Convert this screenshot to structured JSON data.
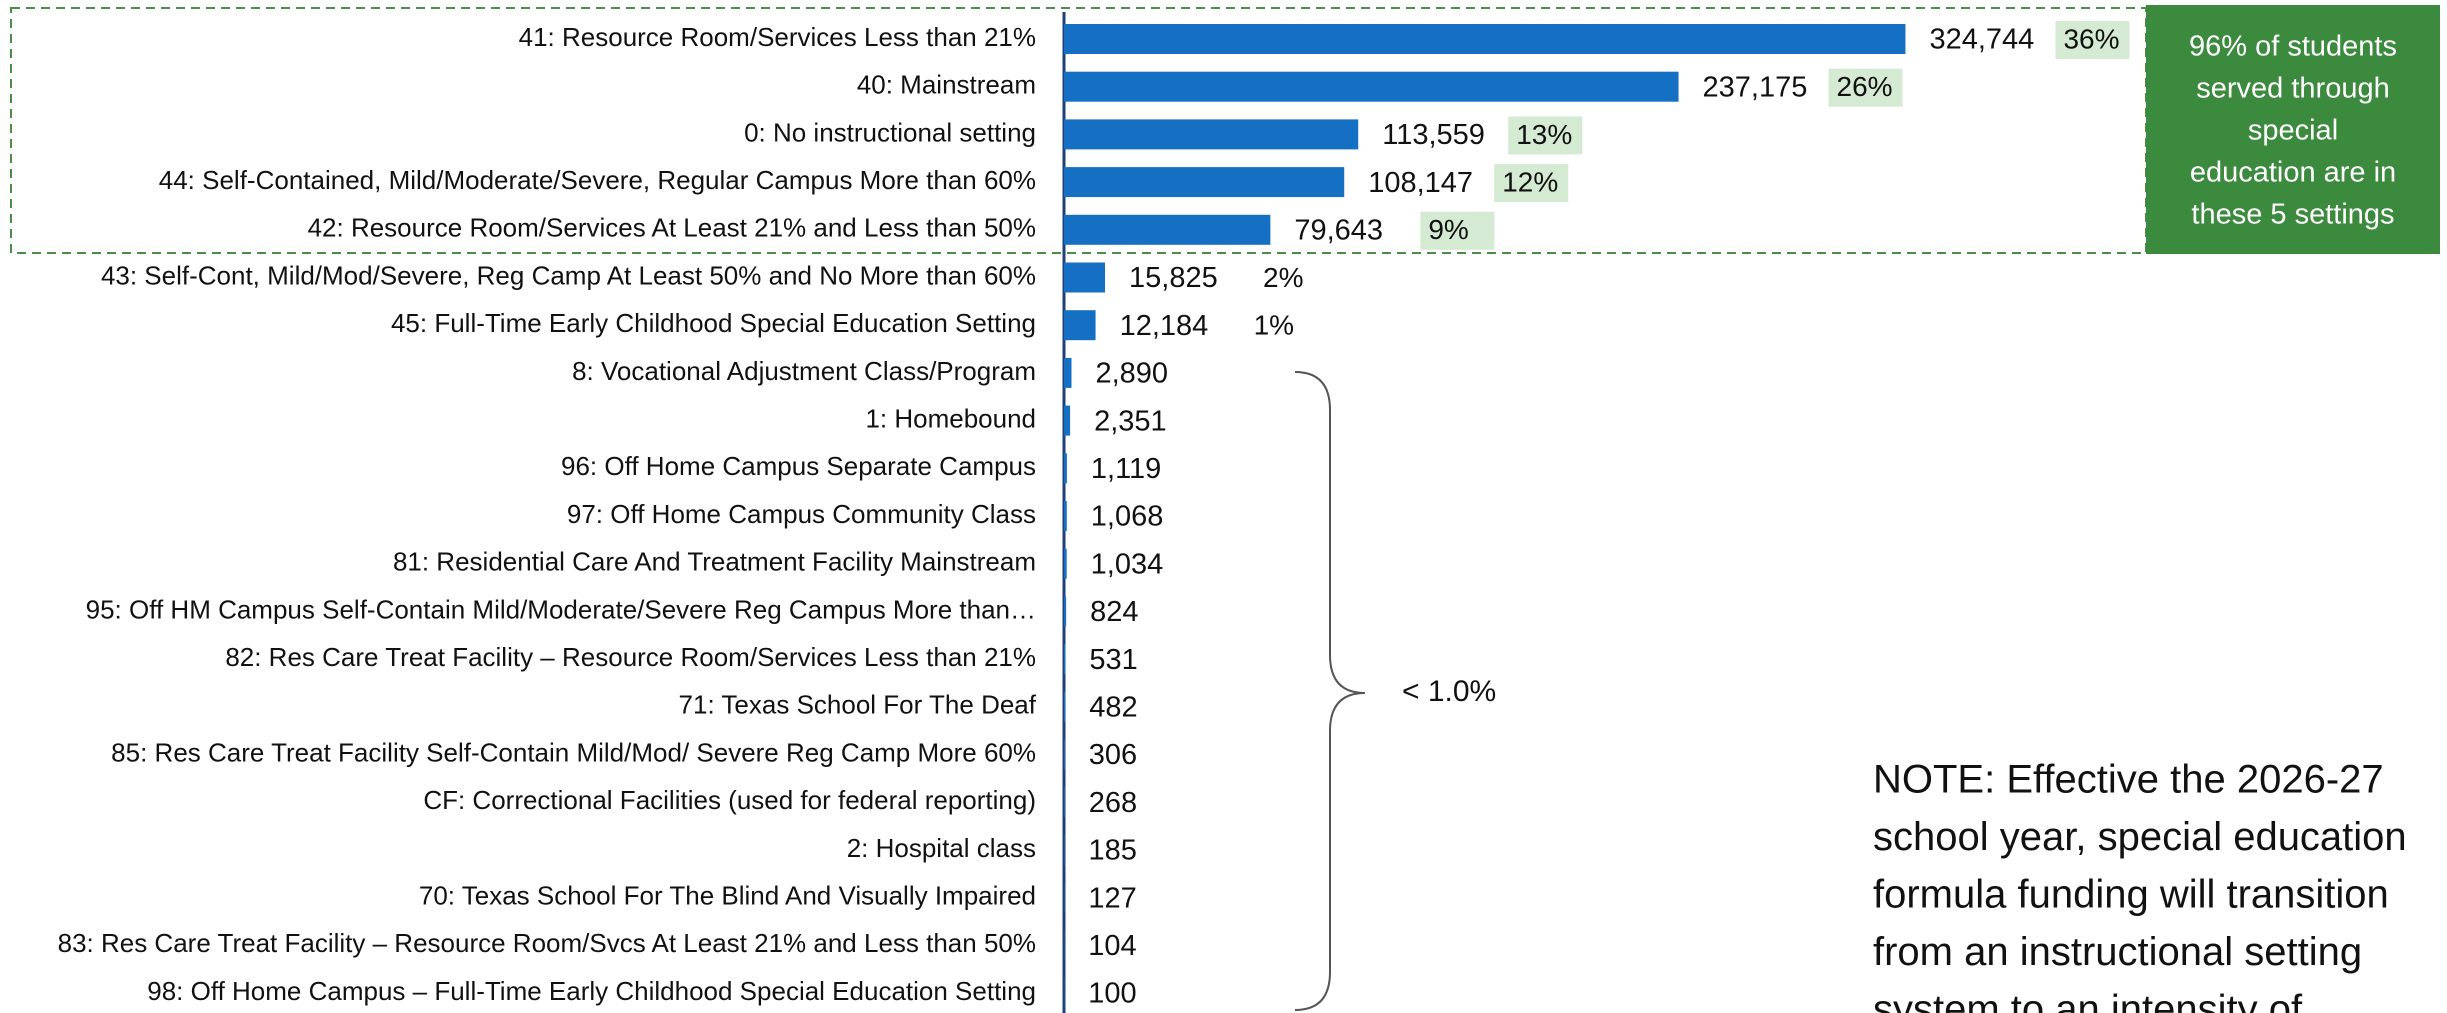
{
  "chart_data": {
    "type": "bar",
    "orientation": "horizontal",
    "categories": [
      "41: Resource Room/Services Less than 21%",
      "40: Mainstream",
      "0: No instructional setting",
      "44: Self-Contained, Mild/Moderate/Severe, Regular Campus More than 60%",
      "42: Resource Room/Services At Least 21% and Less than 50%",
      "43: Self-Cont, Mild/Mod/Severe, Reg Camp At Least 50% and No More than 60%",
      "45: Full-Time Early Childhood Special Education Setting",
      "8: Vocational Adjustment Class/Program",
      "1: Homebound",
      "96: Off Home Campus Separate Campus",
      "97: Off Home Campus Community Class",
      "81: Residential Care And Treatment Facility Mainstream",
      "95: Off HM Campus Self-Contain Mild/Moderate/Severe Reg Campus More than…",
      "82: Res Care Treat Facility – Resource Room/Services Less than 21%",
      "71: Texas School For The Deaf",
      "85: Res Care Treat Facility Self-Contain Mild/Mod/ Severe Reg Camp More 60%",
      "CF: Correctional Facilities (used for federal reporting)",
      "2: Hospital class",
      "70: Texas School For The Blind And Visually Impaired",
      "83: Res Care Treat Facility – Resource Room/Svcs At Least 21% and Less than 50%",
      "98: Off Home Campus – Full-Time Early Childhood Special Education Setting"
    ],
    "values": [
      324744,
      237175,
      113559,
      108147,
      79643,
      15825,
      12184,
      2890,
      2351,
      1119,
      1068,
      1034,
      824,
      531,
      482,
      306,
      268,
      185,
      127,
      104,
      100
    ],
    "value_labels": [
      "324,744",
      "237,175",
      "113,559",
      "108,147",
      "79,643",
      "15,825",
      "12,184",
      "2,890",
      "2,351",
      "1,119",
      "1,068",
      "1,034",
      "824",
      "531",
      "482",
      "306",
      "268",
      "185",
      "127",
      "104",
      "100"
    ],
    "percent_labels": [
      "36%",
      "26%",
      "13%",
      "12%",
      "9%",
      "2%",
      "1%",
      null,
      null,
      null,
      null,
      null,
      null,
      null,
      null,
      null,
      null,
      null,
      null,
      null,
      null
    ],
    "color": "#1570c4",
    "xlim": [
      0,
      450000
    ],
    "callout": [
      "96% of students",
      "served through",
      "special",
      "education are in",
      "these 5 settings"
    ],
    "brace_label": "< 1.0%",
    "note": [
      "NOTE:  Effective the 2026-27",
      "school year, special education",
      "formula funding will transition",
      "from an instructional setting",
      "system to an intensity of"
    ]
  }
}
